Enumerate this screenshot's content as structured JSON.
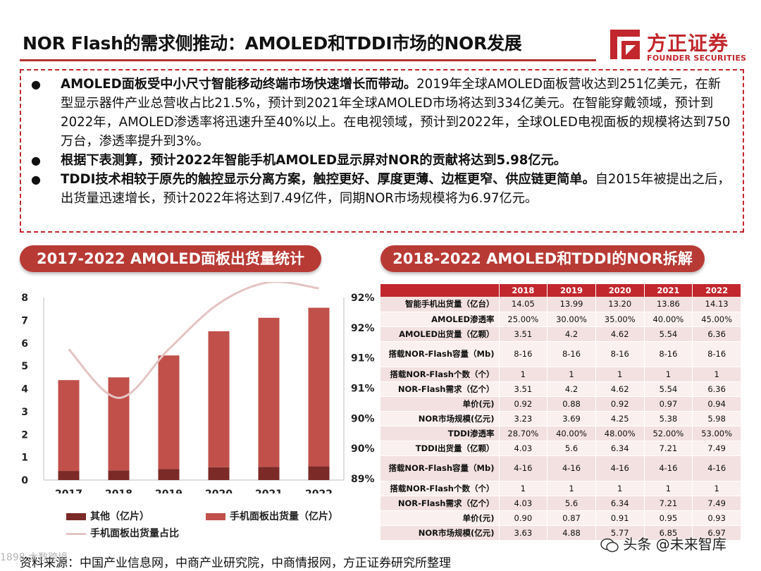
{
  "header": {
    "title": "NOR Flash的需求侧推动：AMOLED和TDDI市场的NOR发展",
    "logo_cn": "方正证券",
    "logo_en": "FOUNDER SECURITIES"
  },
  "bullets": [
    {
      "bold": "AMOLED面板受中小尺寸智能移动终端市场快速增长而带动。",
      "rest": "2019年全球AMOLED面板营收达到251亿美元，在新型显示器件产业总营收占比21.5%，预计到2021年全球AMOLED市场将达到334亿美元。在智能穿戴领域，预计到2022年，AMOLED渗透率将迅速升至40%以上。在电视领域，预计到2022年，全球OLED电视面板的规模将达到750万台，渗透率提升到3%。"
    },
    {
      "bold": "根据下表测算，预计2022年智能手机AMOLED显示屏对NOR的贡献将达到5.98亿元。",
      "rest": ""
    },
    {
      "bold": "TDDI技术相较于原先的触控显示分离方案，触控更好、厚度更薄、边框更窄、供应链更简单。",
      "rest": "自2015年被提出之后，出货量迅速增长，预计2022年将达到7.49亿件，同期NOR市场规模将为6.97亿元。"
    }
  ],
  "left_panel": {
    "title": "2017-2022 AMOLED面板出货量统计"
  },
  "right_panel": {
    "title": "2018-2022 AMOLED和TDDI的NOR拆解"
  },
  "chart_data": {
    "type": "bar",
    "categories": [
      "2017",
      "2018",
      "2019",
      "2020",
      "2021",
      "2022"
    ],
    "series": [
      {
        "name": "其他（亿片）",
        "kind": "bar-stacked",
        "color": "#7b2a27",
        "values": [
          0.4,
          0.42,
          0.48,
          0.56,
          0.58,
          0.6
        ]
      },
      {
        "name": "手机面板出货量（亿片）",
        "kind": "bar-stacked",
        "color": "#c1504b",
        "values": [
          3.98,
          4.08,
          4.98,
          5.96,
          6.53,
          6.95
        ]
      },
      {
        "name": "手机面板出货量占比",
        "kind": "line",
        "axis": "right",
        "color": "#e4c4c3",
        "values": [
          0.9115,
          0.9035,
          0.9115,
          0.919,
          0.9225,
          0.9215
        ]
      }
    ],
    "y_left": {
      "min": 0,
      "max": 8,
      "ticks": [
        "0",
        "1",
        "2",
        "3",
        "4",
        "5",
        "6",
        "7",
        "8"
      ]
    },
    "y_right": {
      "min": 0.89,
      "max": 0.92,
      "ticks": [
        "89%",
        "90%",
        "90%",
        "91%",
        "91%",
        "92%",
        "92%"
      ]
    }
  },
  "table": {
    "years": [
      "2018",
      "2019",
      "2020",
      "2021",
      "2022"
    ],
    "rows": [
      {
        "label": "智能手机出货量（亿台）",
        "values": [
          "14.05",
          "13.99",
          "13.20",
          "13.86",
          "14.13"
        ]
      },
      {
        "label": "AMOLED渗透率",
        "values": [
          "25.00%",
          "30.00%",
          "35.00%",
          "40.00%",
          "45.00%"
        ]
      },
      {
        "label": "AMOLED出货量（亿颗）",
        "values": [
          "3.51",
          "4.2",
          "4.62",
          "5.54",
          "6.36"
        ]
      },
      {
        "label": "搭载NOR-Flash容量（Mb)",
        "values": [
          "8-16",
          "8-16",
          "8-16",
          "8-16",
          "8-16"
        ],
        "tall": true
      },
      {
        "label": "搭载NOR-Flash个数（个）",
        "values": [
          "1",
          "1",
          "1",
          "1",
          "1"
        ]
      },
      {
        "label": "NOR-Flash需求（亿个）",
        "values": [
          "3.51",
          "4.2",
          "4.62",
          "5.54",
          "6.36"
        ]
      },
      {
        "label": "单价(元)",
        "values": [
          "0.92",
          "0.88",
          "0.92",
          "0.97",
          "0.94"
        ]
      },
      {
        "label": "NOR市场规模(亿元)",
        "values": [
          "3.23",
          "3.69",
          "4.25",
          "5.38",
          "5.98"
        ]
      },
      {
        "label": "TDDI渗透率",
        "values": [
          "28.70%",
          "40.00%",
          "48.00%",
          "52.00%",
          "53.00%"
        ]
      },
      {
        "label": "TDDI出货量（亿颗）",
        "values": [
          "4.03",
          "5.6",
          "6.34",
          "7.21",
          "7.49"
        ]
      },
      {
        "label": "搭载NOR-Flash容量（Mb)",
        "values": [
          "4-16",
          "4-16",
          "4-16",
          "4-16",
          "4-16"
        ],
        "tall": true
      },
      {
        "label": "搭载NOR-Flash个数（个）",
        "values": [
          "1",
          "1",
          "1",
          "1",
          "1"
        ]
      },
      {
        "label": "NOR-Flash需求（亿个）",
        "values": [
          "4.03",
          "5.6",
          "6.34",
          "7.21",
          "7.49"
        ]
      },
      {
        "label": "单价(元)",
        "values": [
          "0.90",
          "0.87",
          "0.91",
          "0.95",
          "0.93"
        ]
      },
      {
        "label": "NOR市场规模(亿元)",
        "values": [
          "3.63",
          "4.88",
          "5.77",
          "6.85",
          "6.97"
        ]
      }
    ]
  },
  "footer": {
    "source": "资料来源：中国产业信息网，中商产业研究院，中商情报网，方正证券研究所整理",
    "watermark": "头条 @未来智库",
    "corner_mark": "1898 大数跨境"
  }
}
